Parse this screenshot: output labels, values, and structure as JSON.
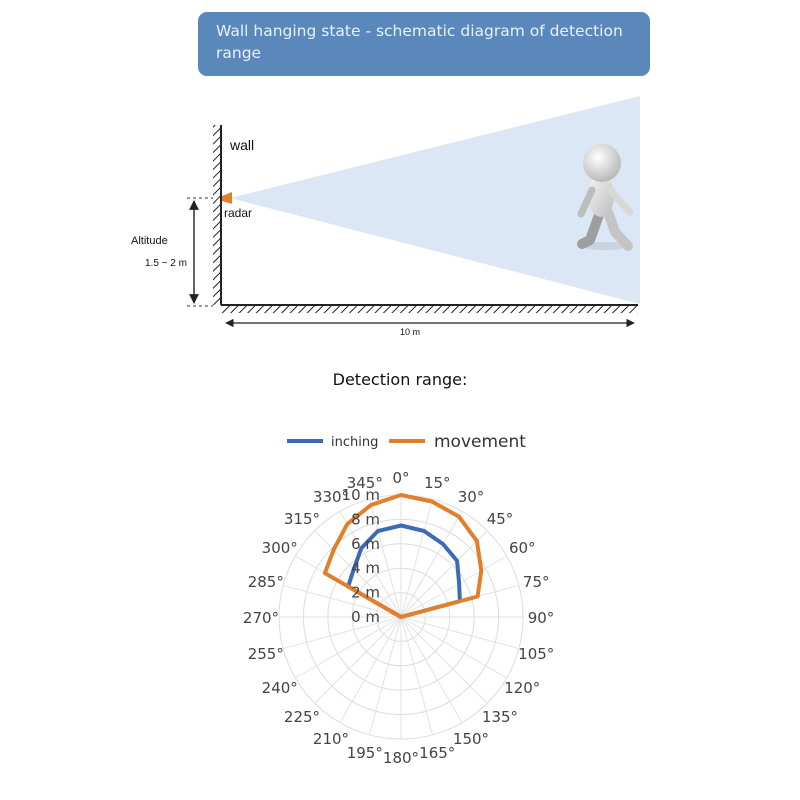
{
  "banner": {
    "title": "Wall hanging state - schematic diagram of detection range"
  },
  "schematic": {
    "wall_label": "wall",
    "radar_label": "radar",
    "altitude_label": "Altitude",
    "altitude_value": "1.5 ~ 2 m",
    "distance_label": "10 m"
  },
  "detection_title": "Detection range:",
  "colors": {
    "inching": "#3d6ab5",
    "movement": "#e27f2a",
    "beam": "#dbe7f4",
    "banner": "#5b88bb"
  },
  "chart_data": {
    "type": "radar",
    "legend": [
      {
        "name": "inching",
        "color": "#3d6ab5"
      },
      {
        "name": "movement",
        "color": "#e27f2a"
      }
    ],
    "angles": [
      0,
      15,
      30,
      45,
      60,
      75,
      90,
      105,
      120,
      135,
      150,
      165,
      180,
      195,
      210,
      225,
      240,
      255,
      270,
      285,
      300,
      315,
      330,
      345
    ],
    "angle_labels": [
      "0°",
      "15°",
      "30°",
      "45°",
      "60°",
      "75°",
      "90°",
      "105°",
      "120°",
      "135°",
      "150°",
      "165°",
      "180°",
      "195°",
      "210°",
      "225°",
      "240°",
      "255°",
      "270°",
      "285°",
      "300°",
      "315°",
      "330°",
      "345°"
    ],
    "radial_labels": [
      "0 m",
      "2 m",
      "4 m",
      "6 m",
      "8 m",
      "10 m"
    ],
    "radial_range": [
      0,
      10
    ],
    "series": [
      {
        "name": "inching",
        "color": "#3d6ab5",
        "values": [
          7.5,
          7.3,
          6.9,
          6.5,
          5.5,
          5,
          0,
          0,
          0,
          0,
          0,
          0,
          0,
          0,
          0,
          0,
          0,
          0,
          0,
          0,
          5,
          5.5,
          6.5,
          7.3
        ]
      },
      {
        "name": "movement",
        "color": "#e27f2a",
        "values": [
          10,
          9.8,
          9.5,
          8.8,
          7.6,
          6.5,
          0,
          0,
          0,
          0,
          0,
          0,
          0,
          0,
          0,
          0,
          0,
          0,
          0,
          0,
          7.2,
          7.8,
          8.8,
          9.5
        ]
      }
    ]
  }
}
